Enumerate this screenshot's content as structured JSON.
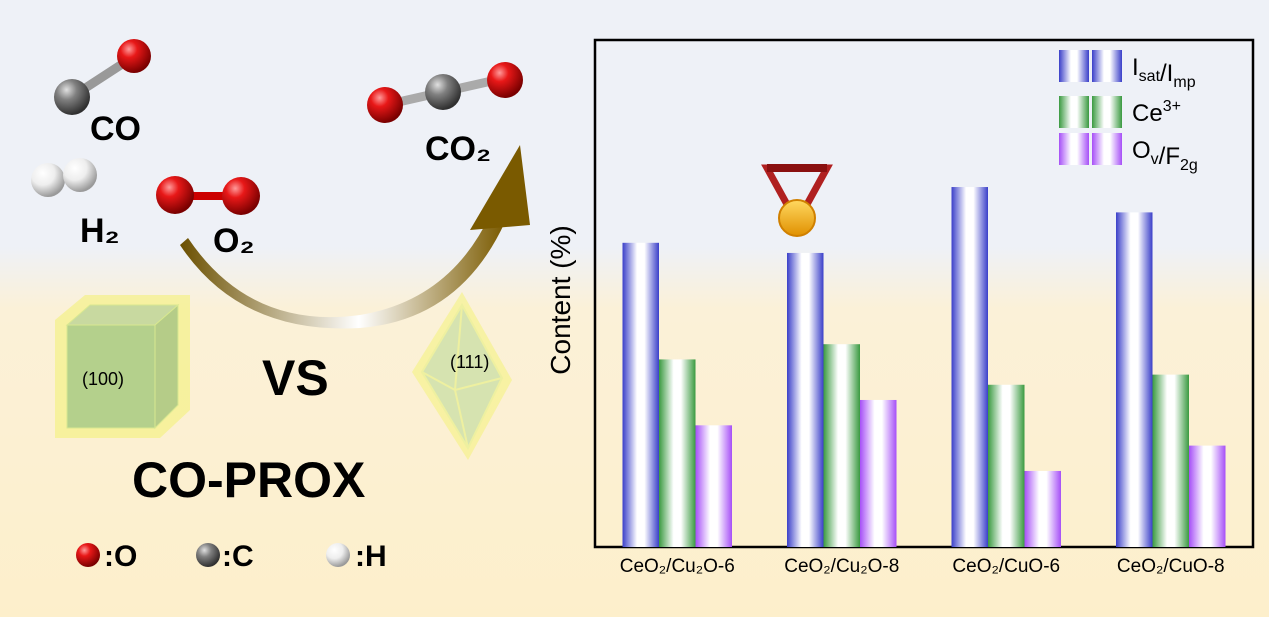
{
  "scheme": {
    "molecules": {
      "co": "CO",
      "co2": "CO₂",
      "h2": "H₂",
      "o2": "O₂"
    },
    "facets": {
      "cube": "(100)",
      "octahedron": "(111)"
    },
    "vs": "VS",
    "reaction": "CO-PROX",
    "atom_legend": [
      {
        "label": ":O",
        "color": "#e01010"
      },
      {
        "label": ":C",
        "color": "#7a7a7a"
      },
      {
        "label": ":H",
        "color": "#f2f2f2"
      }
    ],
    "arrow_color": "#7a5a00",
    "best_marker": "medal-icon"
  },
  "chart_data": {
    "type": "bar",
    "ylabel": "Content (%)",
    "xlabel": "",
    "ylim": [
      0,
      100
    ],
    "y_ticks_shown": false,
    "grid": false,
    "legend_position": "top-right",
    "categories": [
      "CeO₂/Cu₂O-6",
      "CeO₂/Cu₂O-8",
      "CeO₂/CuO-6",
      "CeO₂/CuO-8"
    ],
    "highlighted_category": "CeO₂/Cu₂O-8",
    "series": [
      {
        "name": "Isat/Imp",
        "parts": [
          [
            "I",
            ""
          ],
          [
            "sat",
            "sub"
          ],
          [
            "/I",
            ""
          ],
          [
            "mp",
            "sub"
          ]
        ],
        "color": "#3a3fc9",
        "values": [
          60,
          58,
          71,
          66
        ]
      },
      {
        "name": "Ce3+",
        "parts": [
          [
            "Ce",
            ""
          ],
          [
            "3+",
            "sup"
          ]
        ],
        "color": "#3a9a40",
        "values": [
          37,
          40,
          32,
          34
        ]
      },
      {
        "name": "Ov/F2g",
        "parts": [
          [
            "O",
            ""
          ],
          [
            "v",
            "sub"
          ],
          [
            "/F",
            ""
          ],
          [
            "2g",
            "sub"
          ]
        ],
        "color": "#a64ff7",
        "values": [
          24,
          29,
          15,
          20
        ]
      }
    ]
  }
}
